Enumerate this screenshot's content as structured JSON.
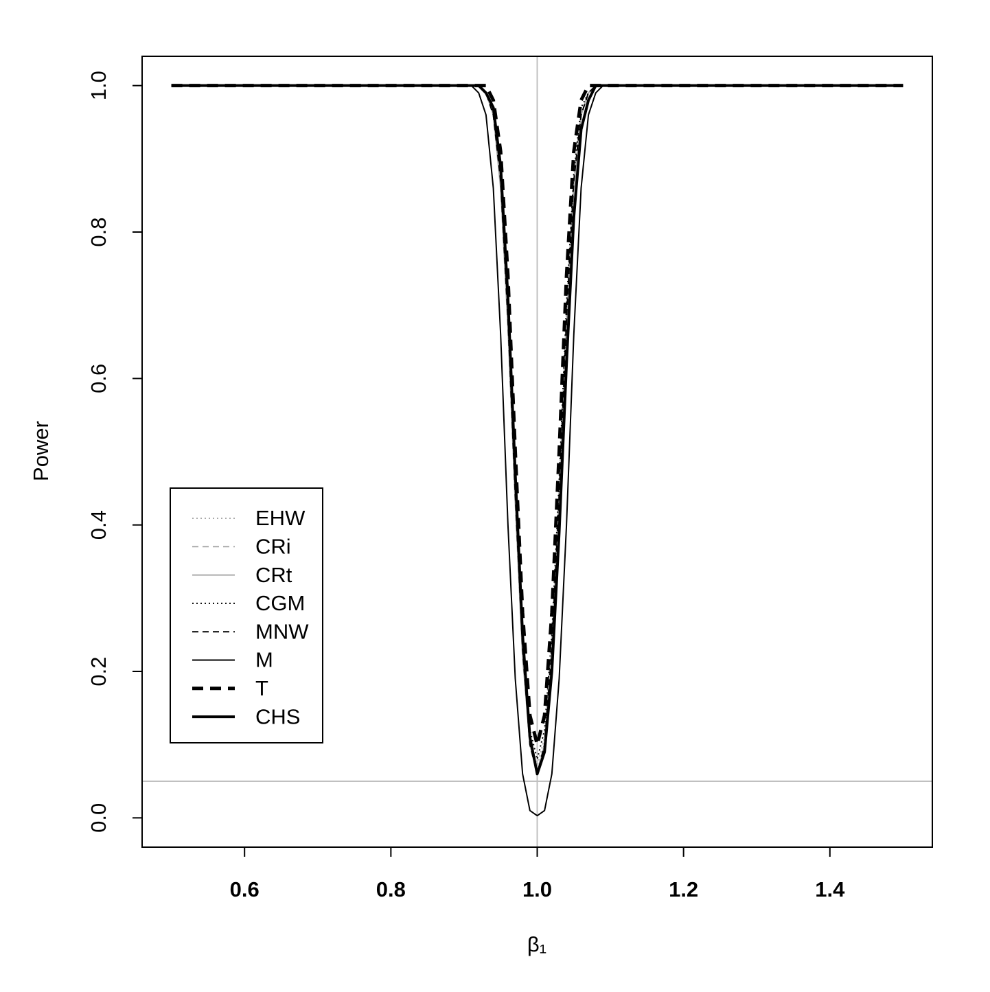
{
  "chart_data": {
    "type": "line",
    "x_label": "β₁",
    "y_label": "Power",
    "x": [
      0.5,
      0.9,
      0.91,
      0.92,
      0.93,
      0.94,
      0.95,
      0.96,
      0.97,
      0.98,
      0.99,
      1.0,
      1.01,
      1.02,
      1.03,
      1.04,
      1.05,
      1.06,
      1.07,
      1.08,
      1.09,
      1.1,
      1.5
    ],
    "series": [
      {
        "name": "EHW",
        "color": "#aaaaaa",
        "line_style": "dotted",
        "values": [
          1,
          1,
          1,
          1,
          0.99,
          0.96,
          0.87,
          0.69,
          0.45,
          0.24,
          0.11,
          0.07,
          0.11,
          0.24,
          0.45,
          0.69,
          0.87,
          0.96,
          0.99,
          1,
          1,
          1,
          1
        ]
      },
      {
        "name": "CRi",
        "color": "#aaaaaa",
        "line_style": "dashed",
        "values": [
          1,
          1,
          1,
          1,
          0.99,
          0.96,
          0.87,
          0.68,
          0.44,
          0.23,
          0.1,
          0.06,
          0.1,
          0.23,
          0.44,
          0.68,
          0.87,
          0.96,
          0.99,
          1,
          1,
          1,
          1
        ]
      },
      {
        "name": "CRt",
        "color": "#aaaaaa",
        "line_style": "solid",
        "values": [
          1,
          1,
          1,
          1,
          0.99,
          0.96,
          0.86,
          0.67,
          0.43,
          0.22,
          0.1,
          0.06,
          0.1,
          0.22,
          0.43,
          0.67,
          0.86,
          0.96,
          0.99,
          1,
          1,
          1,
          1
        ]
      },
      {
        "name": "CGM",
        "color": "#000000",
        "line_style": "dotted",
        "values": [
          1,
          1,
          1,
          1,
          0.99,
          0.97,
          0.88,
          0.7,
          0.46,
          0.25,
          0.12,
          0.08,
          0.12,
          0.25,
          0.46,
          0.7,
          0.88,
          0.97,
          0.99,
          1,
          1,
          1,
          1
        ]
      },
      {
        "name": "MNW",
        "color": "#000000",
        "line_style": "dashed",
        "values": [
          1,
          1,
          1,
          1,
          0.99,
          0.96,
          0.87,
          0.68,
          0.44,
          0.23,
          0.1,
          0.06,
          0.1,
          0.23,
          0.44,
          0.68,
          0.87,
          0.96,
          0.99,
          1,
          1,
          1,
          1
        ]
      },
      {
        "name": "M",
        "color": "#000000",
        "line_style": "solid",
        "values": [
          1,
          1,
          1,
          0.99,
          0.96,
          0.86,
          0.66,
          0.4,
          0.19,
          0.06,
          0.01,
          0.003,
          0.01,
          0.06,
          0.19,
          0.4,
          0.66,
          0.86,
          0.96,
          0.99,
          1,
          1,
          1
        ]
      },
      {
        "name": "T",
        "color": "#000000",
        "line_style": "thick-dashed",
        "values": [
          1,
          1,
          1,
          1,
          1,
          0.98,
          0.91,
          0.74,
          0.5,
          0.28,
          0.14,
          0.1,
          0.14,
          0.28,
          0.5,
          0.74,
          0.91,
          0.98,
          1,
          1,
          1,
          1,
          1
        ]
      },
      {
        "name": "CHS",
        "color": "#000000",
        "line_style": "thick-solid",
        "values": [
          1,
          1,
          1,
          1,
          0.99,
          0.97,
          0.89,
          0.71,
          0.47,
          0.25,
          0.11,
          0.06,
          0.09,
          0.2,
          0.39,
          0.62,
          0.82,
          0.94,
          0.98,
          1,
          1,
          1,
          1
        ]
      }
    ],
    "xlim": [
      0.46,
      1.54
    ],
    "xticks": [
      0.6,
      0.8,
      {
        "value": 1,
        "label": "1.0"
      },
      1.2,
      1.4
    ],
    "ylim": [
      -0.04,
      1.04
    ],
    "yticks": [
      {
        "value": 0,
        "label": "0.0"
      },
      0.2,
      0.4,
      0.6,
      0.8,
      {
        "value": 1,
        "label": "1.0"
      }
    ],
    "reference_lines": {
      "color": "#c0c0c0",
      "x": [
        1
      ],
      "y": [
        0.05
      ]
    },
    "legend": "left"
  }
}
